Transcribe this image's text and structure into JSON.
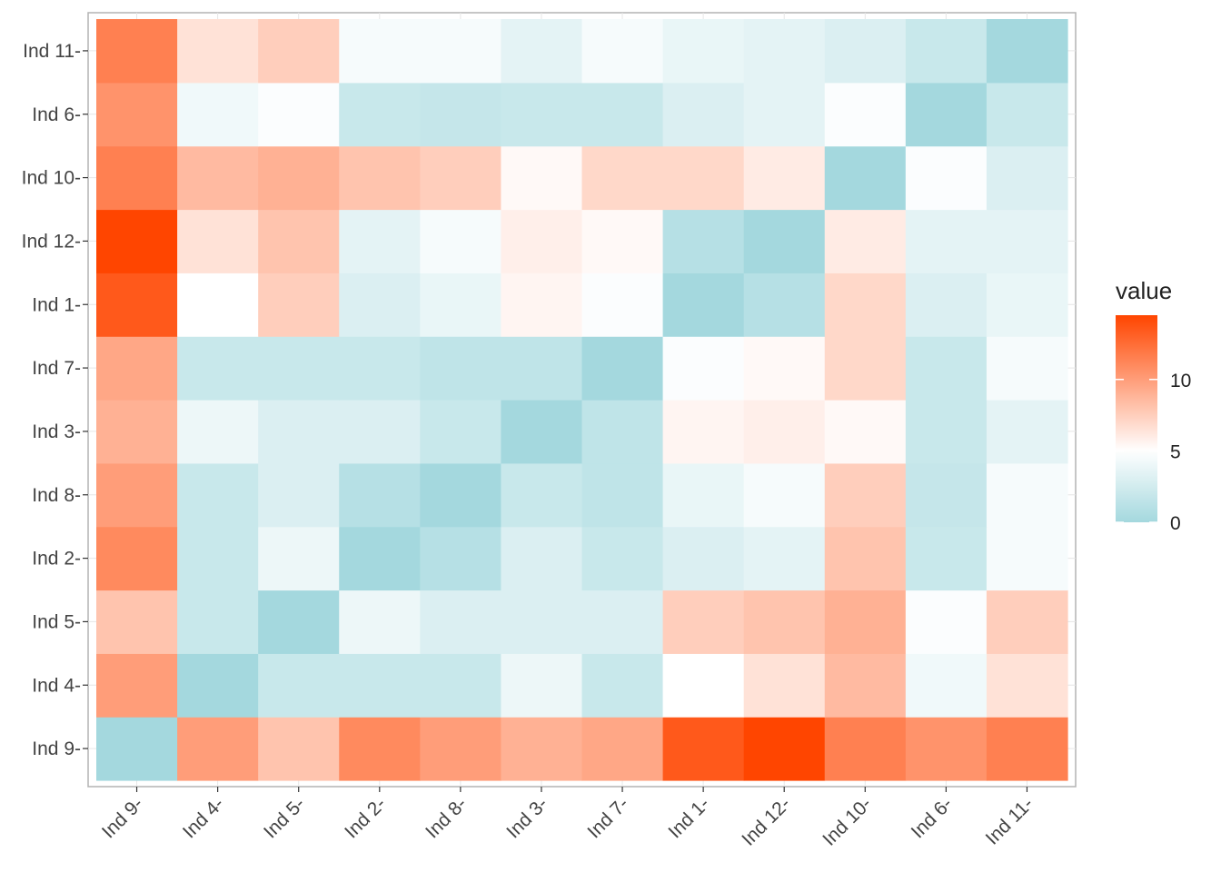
{
  "chart_data": {
    "type": "heatmap",
    "title": "",
    "xlabel": "",
    "ylabel": "",
    "x_categories": [
      "Ind 9-",
      "Ind 4-",
      "Ind 5-",
      "Ind 2-",
      "Ind 8-",
      "Ind 3-",
      "Ind 7-",
      "Ind 1-",
      "Ind 12-",
      "Ind 10-",
      "Ind 6-",
      "Ind 11-"
    ],
    "y_categories": [
      "Ind 9-",
      "Ind 4-",
      "Ind 5-",
      "Ind 2-",
      "Ind 8-",
      "Ind 3-",
      "Ind 7-",
      "Ind 1-",
      "Ind 12-",
      "Ind 10-",
      "Ind 6-",
      "Ind 11-"
    ],
    "values": [
      [
        0.0,
        10.0,
        8.0,
        11.0,
        10.0,
        9.0,
        9.5,
        13.5,
        14.5,
        11.5,
        10.5,
        11.5
      ],
      [
        10.0,
        0.0,
        2.0,
        2.0,
        2.0,
        4.0,
        2.0,
        5.0,
        6.5,
        8.5,
        4.2,
        6.5
      ],
      [
        8.0,
        2.0,
        0.0,
        4.0,
        3.0,
        3.0,
        3.0,
        7.5,
        8.0,
        9.0,
        4.8,
        7.5
      ],
      [
        11.0,
        2.0,
        4.0,
        0.0,
        1.0,
        3.0,
        2.0,
        3.0,
        3.5,
        8.0,
        2.0,
        4.5
      ],
      [
        10.0,
        2.0,
        3.0,
        1.0,
        0.0,
        2.0,
        1.5,
        3.8,
        4.5,
        7.5,
        1.8,
        4.5
      ],
      [
        9.0,
        4.0,
        3.0,
        3.0,
        2.0,
        0.0,
        1.5,
        5.5,
        5.8,
        5.3,
        2.0,
        3.5
      ],
      [
        9.5,
        2.0,
        2.0,
        2.0,
        1.5,
        1.5,
        0.0,
        4.8,
        5.3,
        7.0,
        2.0,
        4.5
      ],
      [
        13.5,
        5.0,
        7.5,
        3.0,
        3.8,
        5.5,
        4.8,
        0.0,
        1.0,
        7.0,
        3.0,
        3.8
      ],
      [
        14.5,
        6.5,
        8.0,
        3.5,
        4.5,
        5.8,
        5.3,
        1.0,
        0.0,
        6.0,
        3.5,
        3.5
      ],
      [
        11.5,
        8.5,
        9.0,
        8.0,
        7.5,
        5.3,
        7.0,
        7.0,
        6.0,
        0.0,
        4.8,
        3.0
      ],
      [
        10.5,
        4.2,
        4.8,
        2.0,
        1.8,
        2.0,
        2.0,
        3.0,
        3.5,
        4.8,
        0.0,
        2.0
      ],
      [
        11.5,
        6.5,
        7.5,
        4.5,
        4.5,
        3.5,
        4.5,
        3.8,
        3.5,
        3.0,
        2.0,
        0.0
      ]
    ],
    "legend": {
      "title": "value",
      "position": "right",
      "ticks": [
        0,
        5,
        10
      ],
      "range": [
        0,
        14.5
      ],
      "low_color": "#a4d8de",
      "mid_color": "#ffffff",
      "midpoint": 5,
      "high_color": "#ff4500"
    }
  }
}
